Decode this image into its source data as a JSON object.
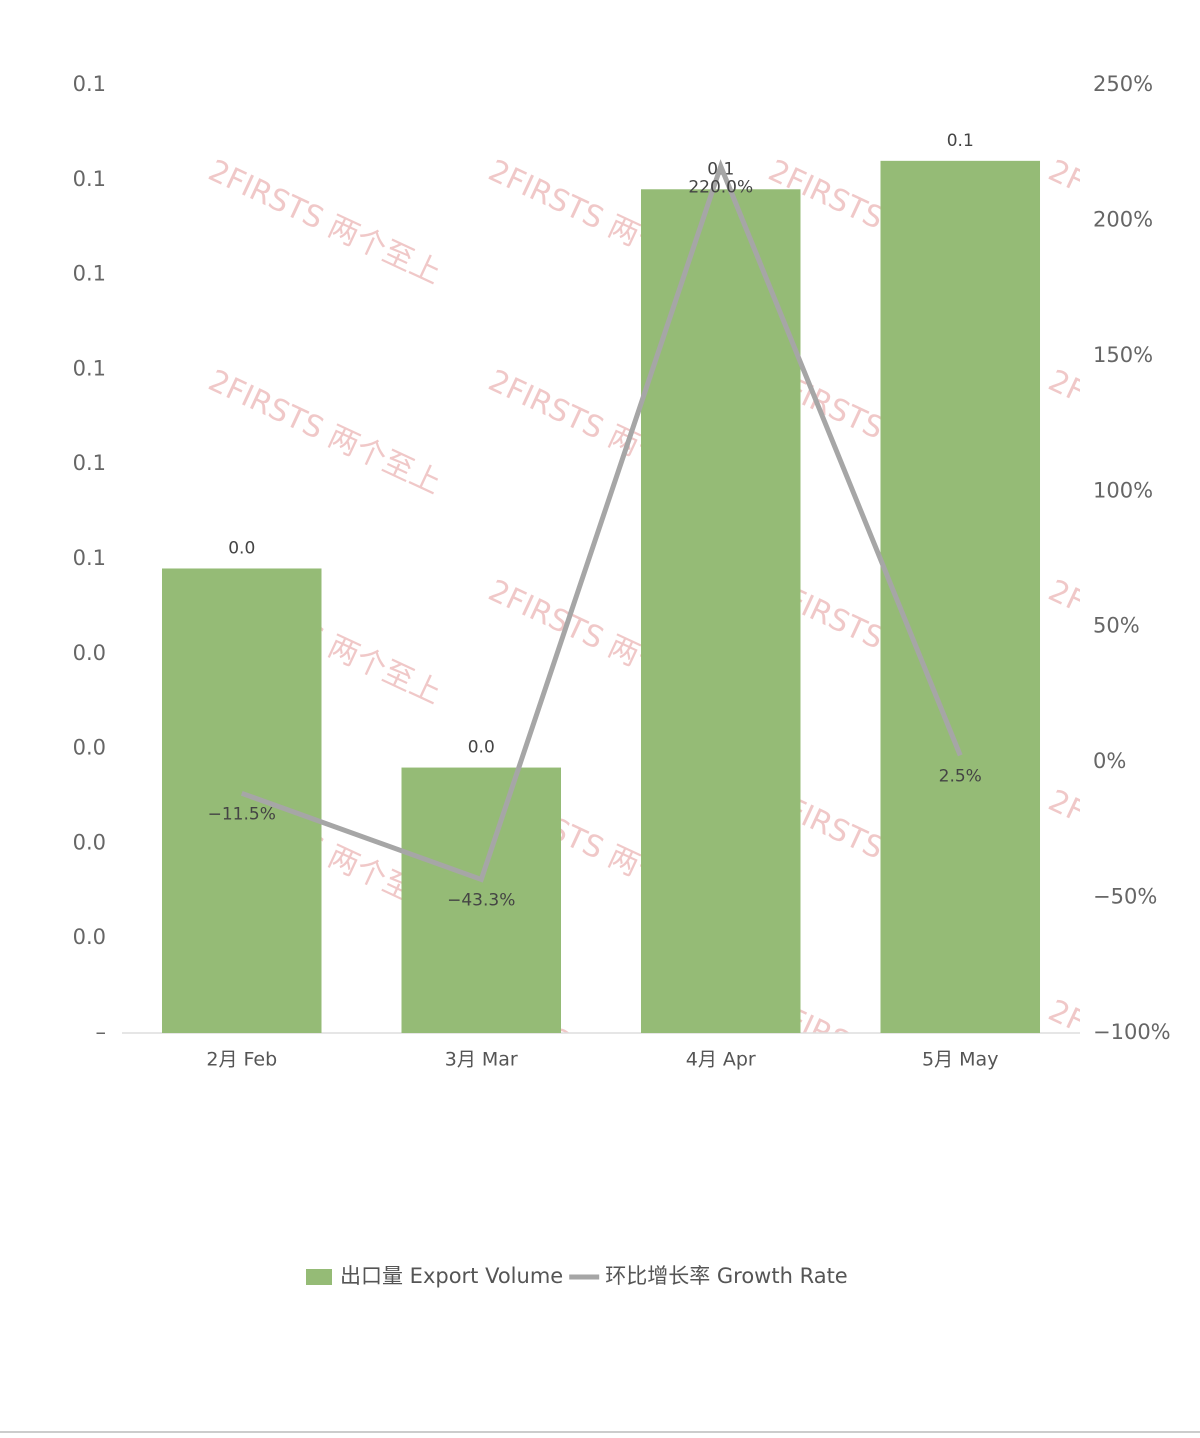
{
  "chart_data": {
    "type": "bar_line",
    "categories": [
      "2月 Feb",
      "3月 Mar",
      "4月 Apr",
      "5月 May"
    ],
    "series": [
      {
        "name": "出口量 Export Volume",
        "type": "bar",
        "color": "#95bb76",
        "values": [
          0.049,
          0.028,
          0.089,
          0.092
        ],
        "value_labels": [
          "0.0",
          "0.0",
          "0.1",
          "0.1"
        ]
      },
      {
        "name": "环比增长率 Growth Rate",
        "type": "line",
        "axis": "y2",
        "color": "#a6a6a6",
        "values": [
          -11.5,
          -43.3,
          220.0,
          2.5
        ],
        "value_labels": [
          "−11.5%",
          "−43.3%",
          "220.0%",
          "2.5%"
        ]
      }
    ],
    "ylim": [
      0,
      0.1
    ],
    "yticks": [
      {
        "value": 0,
        "label": "–"
      },
      {
        "value": 0.01,
        "label": "0.0"
      },
      {
        "value": 0.02,
        "label": "0.0"
      },
      {
        "value": 0.03,
        "label": "0.0"
      },
      {
        "value": 0.04,
        "label": "0.0"
      },
      {
        "value": 0.05,
        "label": "0.1"
      },
      {
        "value": 0.06,
        "label": "0.1"
      },
      {
        "value": 0.07,
        "label": "0.1"
      },
      {
        "value": 0.08,
        "label": "0.1"
      },
      {
        "value": 0.09,
        "label": "0.1"
      },
      {
        "value": 0.1,
        "label": "0.1"
      }
    ],
    "y2lim": [
      -100,
      250
    ],
    "y2ticks": [
      {
        "value": -100,
        "label": "−100%"
      },
      {
        "value": -50,
        "label": "−50%"
      },
      {
        "value": 0,
        "label": "0%"
      },
      {
        "value": 50,
        "label": "50%"
      },
      {
        "value": 100,
        "label": "100%"
      },
      {
        "value": 150,
        "label": "150%"
      },
      {
        "value": 200,
        "label": "200%"
      },
      {
        "value": 250,
        "label": "250%"
      }
    ],
    "watermark": "2FIRSTS 两个至上",
    "legend": "bottom"
  }
}
